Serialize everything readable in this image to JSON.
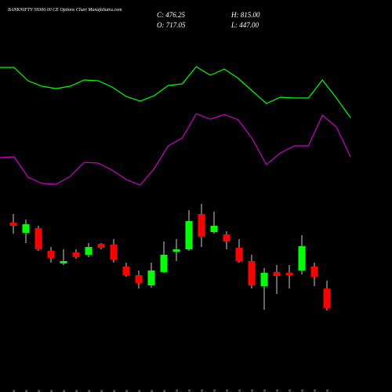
{
  "chart_data": {
    "type": "candlestick",
    "title": "BANKNIFTY 59300.00 CE Options Chart MunafaSutra.com",
    "summary": {
      "close": "C: 476.25",
      "high": "H: 815.00",
      "open": "O: 717.05",
      "low": "L: 447.00"
    },
    "categories": [
      "12 Dec",
      "15 Dec",
      "16 Dec",
      "17 Dec",
      "18 Dec",
      "19 Dec",
      "22 Dec",
      "23 Dec",
      "24 Dec",
      "26 Dec",
      "29 Dec",
      "30 Dec",
      "31 Dec",
      "01 Jan",
      "02 Jan",
      "05 Jan",
      "06 Jan",
      "07 Jan",
      "08 Jan",
      "09 Jan",
      "12 Jan",
      "13 Jan",
      "14 Jan",
      "16 Jan",
      "19 Jan",
      "20 Jan"
    ],
    "open": [
      1532,
      1406,
      1464,
      1183,
      1028,
      1164,
      1135,
      1270,
      1260,
      989,
      883,
      757,
      922,
      1173,
      1202,
      1638,
      1415,
      1386,
      1222,
      1057,
      747,
      922,
      912,
      941,
      989,
      717.05
    ],
    "high": [
      1638,
      1570,
      1493,
      1231,
      1202,
      1202,
      1280,
      1280,
      1328,
      1038,
      941,
      1038,
      1299,
      1328,
      1687,
      1764,
      1667,
      1425,
      1328,
      1135,
      970,
      1009,
      1009,
      1377,
      1038,
      815
    ],
    "low": [
      1396,
      1280,
      1183,
      1038,
      1009,
      1086,
      1106,
      1202,
      1038,
      863,
      718,
      728,
      912,
      1057,
      1183,
      1231,
      1396,
      1202,
      1038,
      718,
      457,
      650,
      718,
      892,
      747,
      447
    ],
    "close": [
      1493,
      1512,
      1202,
      1096,
      1057,
      1106,
      1231,
      1222,
      1076,
      883,
      786,
      941,
      1135,
      1202,
      1551,
      1357,
      1493,
      1299,
      1057,
      757,
      912,
      873,
      883,
      1241,
      863,
      476.25
    ],
    "up_color": "#00ff00",
    "down_color": "#ff0000",
    "ylim": [
      408,
      1861
    ],
    "indicators": {
      "ylim": [
        0,
        200
      ],
      "series": [
        {
          "color": "#00ff00",
          "values": [
            174,
            174,
            157,
            150,
            147,
            150,
            158,
            157,
            149,
            137,
            131,
            138,
            151,
            153,
            175,
            164,
            172,
            160,
            144,
            128,
            136,
            135,
            135,
            158,
            135,
            110
          ]
        },
        {
          "color": "#cc00cc",
          "values": [
            59,
            60,
            34,
            26,
            25,
            35,
            53,
            52,
            43,
            31,
            24,
            45,
            74,
            84,
            115,
            108,
            114,
            107,
            83,
            50,
            65,
            74,
            74,
            113,
            98,
            60
          ]
        }
      ]
    }
  }
}
